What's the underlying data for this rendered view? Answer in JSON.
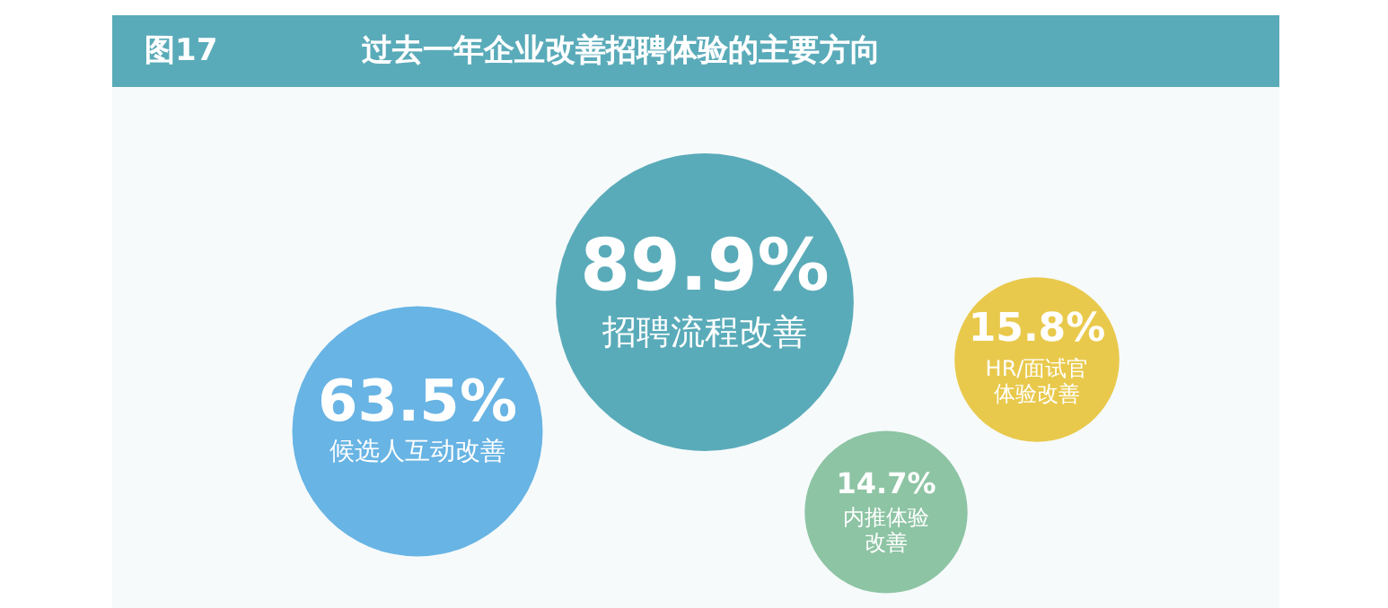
{
  "chart_data": {
    "type": "other",
    "title": "过去一年企业改善招聘体验的主要方向",
    "annotations": [
      "图17"
    ],
    "categories": [
      "招聘流程改善",
      "候选人互动改善",
      "HR/面试官体验改善",
      "内推体验改善"
    ],
    "values": [
      89.9,
      63.5,
      15.8,
      14.7
    ],
    "value_labels": [
      "89.9%",
      "63.5%",
      "15.8%",
      "14.7%"
    ],
    "colors": [
      "#5aabb9",
      "#68b4e4",
      "#e9c94c",
      "#8dc4a4"
    ]
  }
}
